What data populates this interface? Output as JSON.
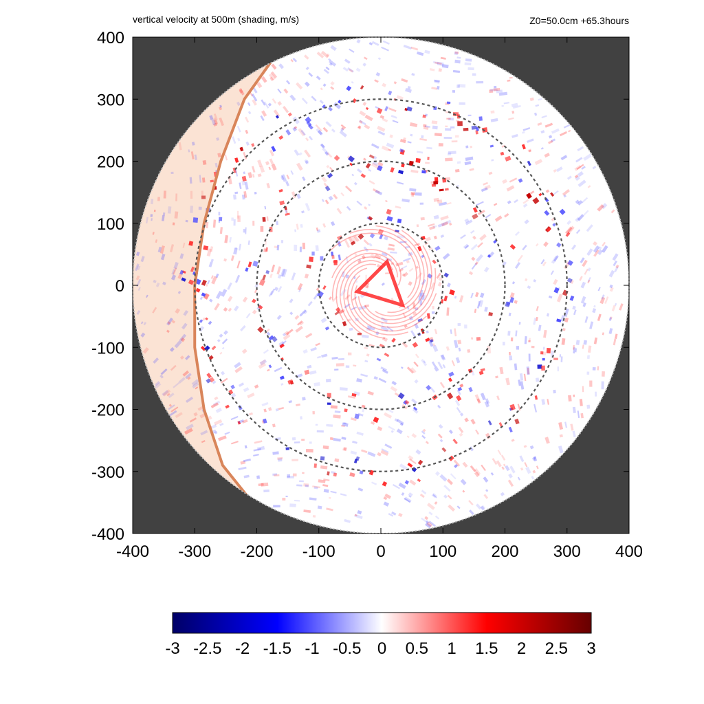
{
  "header": {
    "title_left": "vertical velocity at 500m (shading, m/s)",
    "title_right": "Z0=50.0cm  +65.3hours"
  },
  "chart_data": {
    "type": "heatmap",
    "title": "vertical velocity at 500m (shading, m/s)",
    "subtitle": "Z0=50.0cm  +65.3hours",
    "xlim": [
      -400,
      400
    ],
    "ylim": [
      -400,
      400
    ],
    "x_ticks": [
      -400,
      -300,
      -200,
      -100,
      0,
      100,
      200,
      300,
      400
    ],
    "y_ticks": [
      -400,
      -300,
      -200,
      -100,
      0,
      100,
      200,
      300,
      400
    ],
    "domain_radius": 400,
    "reference_circles": [
      100,
      200,
      300
    ],
    "land_boundary": [
      [
        -170,
        370
      ],
      [
        -220,
        300
      ],
      [
        -258,
        200
      ],
      [
        -285,
        100
      ],
      [
        -300,
        0
      ],
      [
        -300,
        -100
      ],
      [
        -285,
        -200
      ],
      [
        -255,
        -290
      ],
      [
        -215,
        -340
      ]
    ],
    "colorbar": {
      "min": -3,
      "max": 3,
      "ticks": [
        "-3",
        "-2.5",
        "-2",
        "-1.5",
        "-1",
        "-0.5",
        "0",
        "0.5",
        "1",
        "1.5",
        "2",
        "2.5",
        "3"
      ],
      "colormap": [
        "#000066",
        "#0000ff",
        "#ffffff",
        "#ff0000",
        "#660000"
      ]
    },
    "colors": {
      "background": "#414141",
      "land": "#fbe3d4",
      "coastline": "#d9855a",
      "circle": "#555555"
    }
  }
}
